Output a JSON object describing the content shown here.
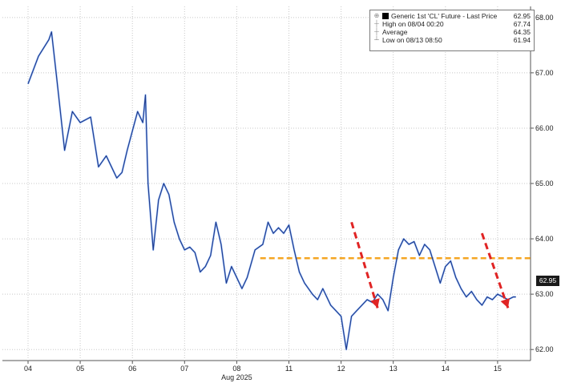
{
  "chart_data": {
    "type": "line",
    "ylim": [
      61.8,
      68.2
    ],
    "y_ticks": [
      "62.00",
      "63.00",
      "64.00",
      "65.00",
      "66.00",
      "67.00",
      "68.00"
    ],
    "x_ticks": [
      "04",
      "05",
      "06",
      "07",
      "08",
      "11",
      "12",
      "13",
      "14",
      "15"
    ],
    "x_sub_label": "Aug 2025",
    "grid": true,
    "legend_position": "top-right",
    "legend": {
      "title": "Generic 1st 'CL' Future - Last Price",
      "title_value": "62.95",
      "rows": [
        {
          "label": "High on 08/04 00:20",
          "value": "67.74"
        },
        {
          "label": "Average",
          "value": "64.35"
        },
        {
          "label": "Low on 08/13 08:50",
          "value": "61.94"
        }
      ]
    },
    "last_price_label": "62.95",
    "series": [
      {
        "x": [
          0,
          0.2,
          0.4,
          0.45,
          0.55,
          0.7,
          0.85,
          1.0,
          1.2,
          1.35,
          1.5,
          1.7,
          1.8,
          1.9,
          2.0,
          2.1,
          2.2,
          2.25,
          2.3,
          2.4,
          2.5,
          2.6,
          2.7,
          2.8,
          2.9,
          3.0,
          3.1,
          3.2,
          3.3,
          3.4,
          3.5,
          3.6,
          3.7,
          3.8,
          3.9,
          4.0,
          4.1,
          4.2,
          4.35,
          4.5,
          4.6,
          4.7,
          4.8,
          4.9,
          5.0,
          5.1,
          5.2,
          5.3,
          5.45,
          5.55,
          5.65,
          5.8,
          5.9,
          6.0,
          6.1,
          6.2,
          6.3,
          6.4,
          6.5,
          6.6,
          6.7,
          6.8,
          6.9,
          7.0,
          7.1,
          7.2,
          7.3,
          7.4,
          7.5,
          7.6,
          7.7,
          7.8,
          7.9,
          8.0,
          8.1,
          8.2,
          8.3,
          8.4,
          8.5,
          8.6,
          8.7,
          8.8,
          8.9,
          9.0,
          9.1,
          9.2,
          9.3,
          9.35
        ],
        "values": [
          66.8,
          67.3,
          67.6,
          67.74,
          66.9,
          65.6,
          66.3,
          66.1,
          66.2,
          65.3,
          65.5,
          65.1,
          65.2,
          65.6,
          65.95,
          66.3,
          66.1,
          66.6,
          65.0,
          63.8,
          64.7,
          65.0,
          64.8,
          64.3,
          64.0,
          63.8,
          63.85,
          63.75,
          63.4,
          63.5,
          63.7,
          64.3,
          63.9,
          63.2,
          63.5,
          63.3,
          63.1,
          63.3,
          63.8,
          63.9,
          64.3,
          64.1,
          64.2,
          64.1,
          64.25,
          63.8,
          63.4,
          63.2,
          63.0,
          62.9,
          63.1,
          62.8,
          62.7,
          62.6,
          62.0,
          62.6,
          62.7,
          62.8,
          62.9,
          62.85,
          63.0,
          62.9,
          62.7,
          63.3,
          63.8,
          64.0,
          63.9,
          63.95,
          63.7,
          63.9,
          63.8,
          63.5,
          63.2,
          63.5,
          63.6,
          63.3,
          63.1,
          62.95,
          63.05,
          62.9,
          62.8,
          62.95,
          62.9,
          63.0,
          62.95,
          62.9,
          62.95,
          62.95
        ]
      }
    ],
    "reference_line": {
      "y": 63.65,
      "style": "dashed"
    },
    "arrows": [
      {
        "from": [
          6.2,
          64.3
        ],
        "to": [
          6.7,
          62.75
        ]
      },
      {
        "from": [
          8.7,
          64.1
        ],
        "to": [
          9.2,
          62.75
        ]
      }
    ],
    "colors": {
      "line": "#1f3a8a",
      "line_highlight": "#3b82f6",
      "reference": "#f5a623",
      "arrow": "#e02424",
      "grid": "#c8c8c8",
      "axis": "#555555"
    }
  }
}
